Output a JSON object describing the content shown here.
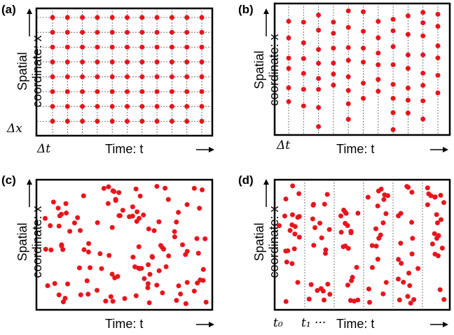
{
  "panels": [
    {
      "id": "a",
      "label": "(a)",
      "ylabel_line1": "Spatial",
      "ylabel_line2": "coordinate: x",
      "xlabel": "Time: t",
      "sym1": "Δt",
      "sym2": "Δx"
    },
    {
      "id": "b",
      "label": "(b)",
      "ylabel_line1": "Spatial",
      "ylabel_line2": "coordinate: x",
      "xlabel": "Time: t",
      "sym1": "Δt"
    },
    {
      "id": "c",
      "label": "(c)",
      "ylabel_line1": "Spatial",
      "ylabel_line2": "coordinate: x",
      "xlabel": "Time: t"
    },
    {
      "id": "d",
      "label": "(d)",
      "ylabel_line1": "Spatial",
      "ylabel_line2": "coordinate: x",
      "xlabel": "Time: t",
      "sym1": "t₀",
      "sym2": "t₁ ···"
    }
  ],
  "colors": {
    "point": "#e8141c",
    "frame": "#000000",
    "grid": "#555555"
  }
}
